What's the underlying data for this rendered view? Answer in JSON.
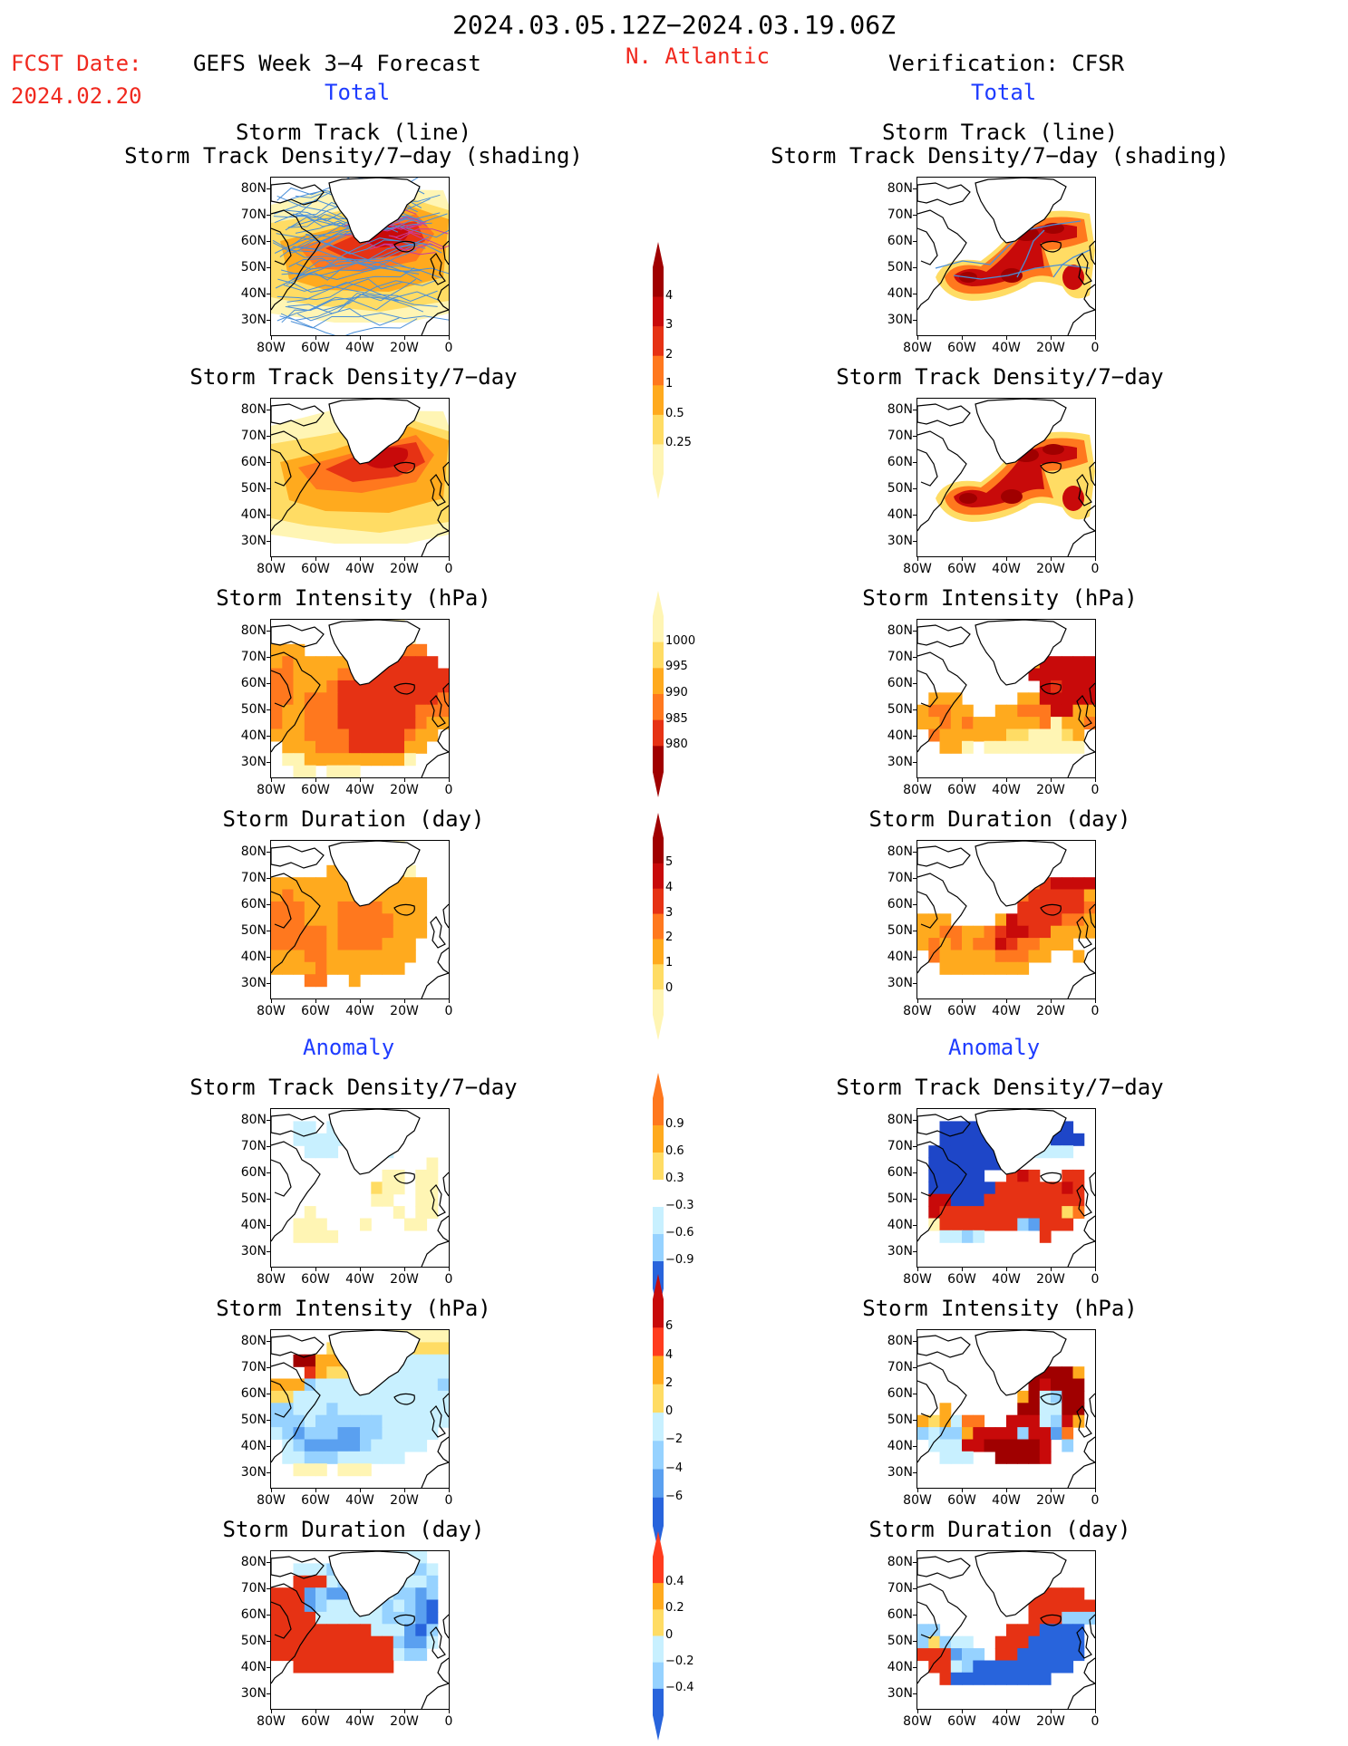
{
  "header": {
    "period": "2024.03.05.12Z−2024.03.19.06Z",
    "fcst_label": "FCST Date:",
    "fcst_date": "2024.02.20",
    "forecast_title": "GEFS Week 3−4 Forecast",
    "region": "N. Atlantic",
    "verification_title": "Verification: CFSR",
    "total_label_left": "Total",
    "total_label_right": "Total",
    "anomaly_label_left": "Anomaly",
    "anomaly_label_right": "Anomaly"
  },
  "axes": {
    "lat_ticks": [
      "80N",
      "70N",
      "60N",
      "50N",
      "40N",
      "30N"
    ],
    "lon_ticks": [
      "80W",
      "60W",
      "40W",
      "20W",
      "0"
    ]
  },
  "panels": {
    "track_line": "Storm Track (line)",
    "track_shading": "Storm Track Density/7−day (shading)",
    "density": "Storm Track Density/7−day",
    "intensity": "Storm Intensity (hPa)",
    "duration": "Storm Duration (day)"
  },
  "colorbars": {
    "density_total": [
      "4",
      "3",
      "2",
      "1",
      "0.5",
      "0.25"
    ],
    "intensity_total": [
      "1000",
      "995",
      "990",
      "985",
      "980"
    ],
    "duration_total": [
      "5",
      "4",
      "3",
      "2",
      "1",
      "0"
    ],
    "density_anom": [
      "0.9",
      "0.6",
      "0.3",
      "−0.3",
      "−0.6",
      "−0.9"
    ],
    "intensity_anom": [
      "6",
      "4",
      "2",
      "0",
      "−2",
      "−4",
      "−6"
    ],
    "duration_anom": [
      "0.4",
      "0.2",
      "0",
      "−0.2",
      "−0.4"
    ]
  },
  "colors": {
    "title_red": "#f0281e",
    "label_blue": "#1e3cff",
    "warm": [
      "#fff5b4",
      "#ffdc64",
      "#ffaa1e",
      "#ff781e",
      "#e63214",
      "#c80a0a",
      "#a00000"
    ],
    "cool": [
      "#c8f0ff",
      "#96d2ff",
      "#5aa0f0",
      "#2864dc",
      "#1e46c8"
    ]
  }
}
